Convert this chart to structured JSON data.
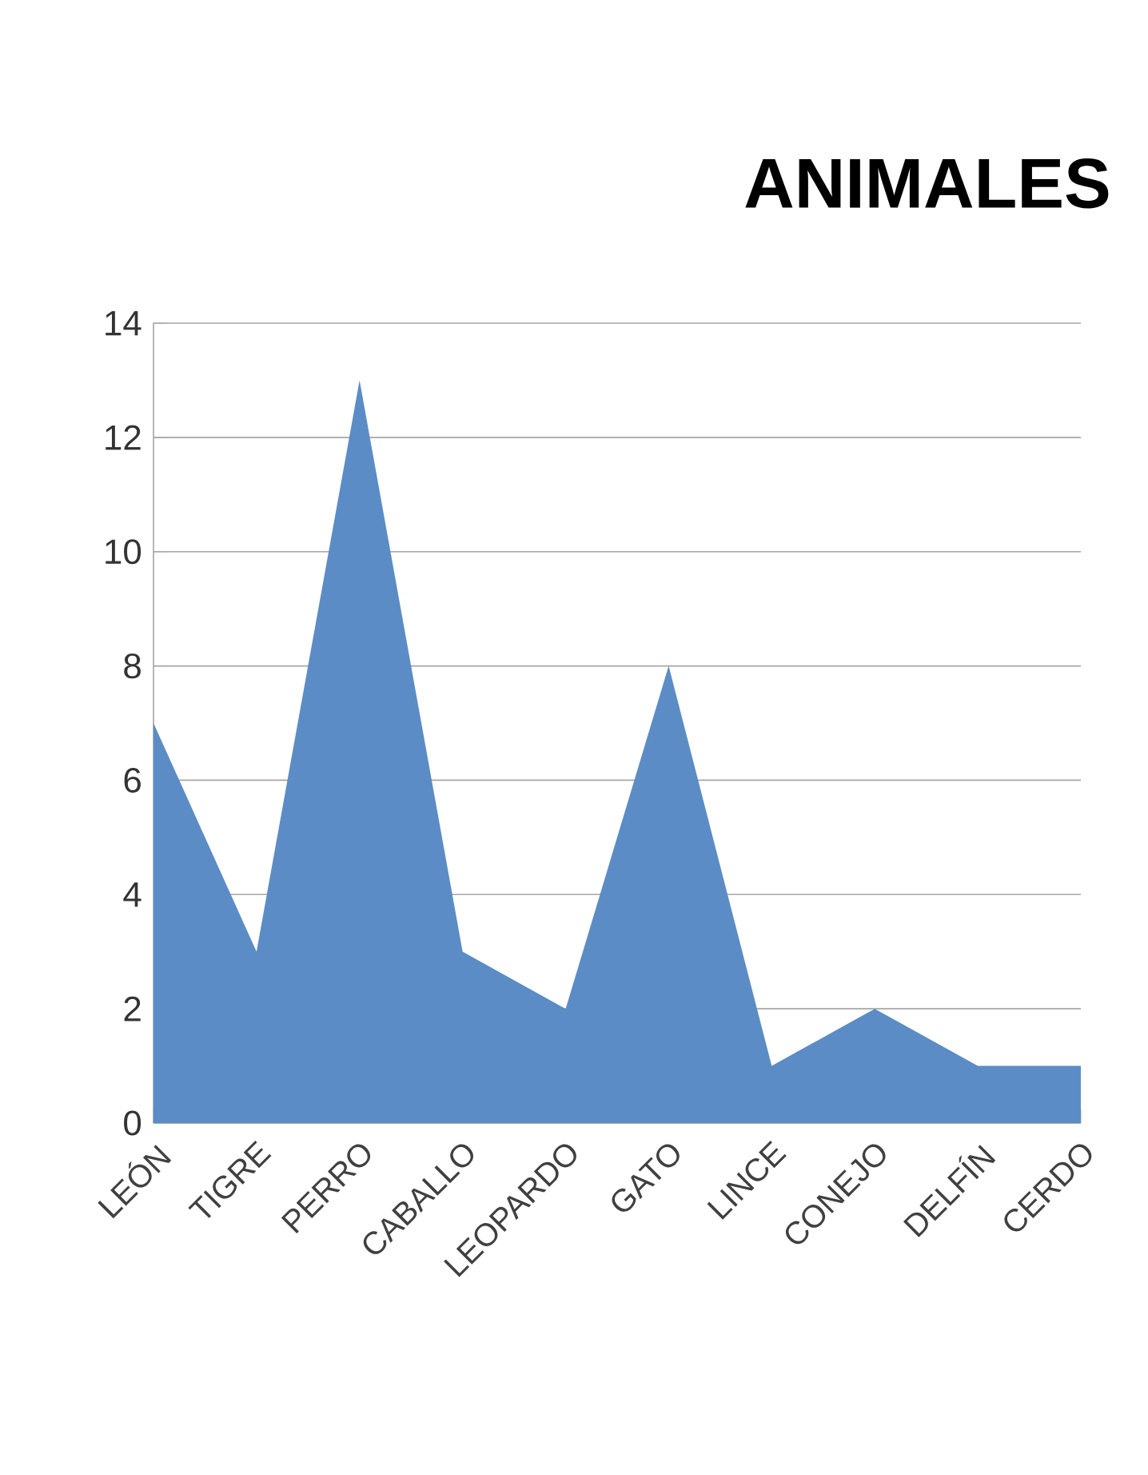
{
  "chart_data": {
    "type": "area",
    "title": "ANIMALES",
    "categories": [
      "LEÓN",
      "TIGRE",
      "PERRO",
      "CABALLO",
      "LEOPARDO",
      "GATO",
      "LINCE",
      "CONEJO",
      "DELFÍN",
      "CERDO"
    ],
    "values": [
      7,
      3,
      13,
      3,
      2,
      8,
      1,
      2,
      1,
      1
    ],
    "color": "#5b8cc5",
    "ylim": [
      0,
      14
    ],
    "yticks": [
      0,
      2,
      4,
      6,
      8,
      10,
      12,
      14
    ],
    "grid": "y"
  }
}
